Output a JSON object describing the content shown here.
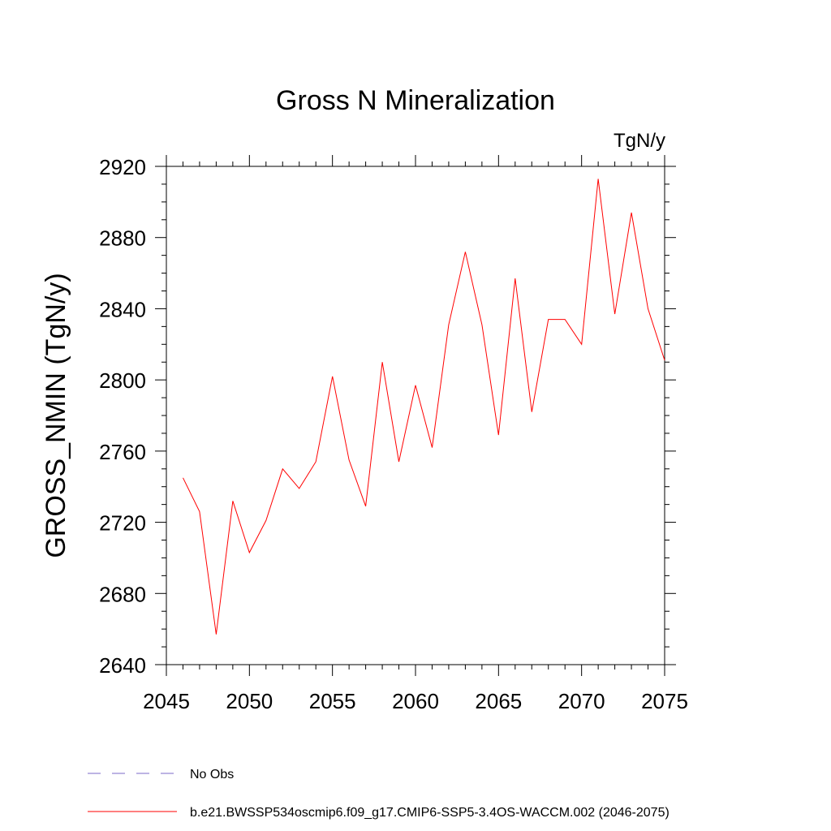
{
  "chart_data": {
    "type": "line",
    "title": "Gross N Mineralization",
    "units": "TgN/y",
    "xlabel": "",
    "ylabel": "GROSS_NMIN  (TgN/y)",
    "xlim": [
      2045,
      2075
    ],
    "ylim": [
      2640,
      2920
    ],
    "x_ticks": [
      2045,
      2050,
      2055,
      2060,
      2065,
      2070,
      2075
    ],
    "y_ticks": [
      2640,
      2680,
      2720,
      2760,
      2800,
      2840,
      2880,
      2920
    ],
    "x_tick_labels": [
      "2045",
      "2050",
      "2055",
      "2060",
      "2065",
      "2070",
      "2075"
    ],
    "y_tick_labels": [
      "2640",
      "2680",
      "2720",
      "2760",
      "2800",
      "2840",
      "2880",
      "2920"
    ],
    "grid": false,
    "legend_position": "bottom-left",
    "series": [
      {
        "name": "b.e21.BWSSP534oscmip6.f09_g17.CMIP6-SSP5-3.4OS-WACCM.002 (2046-2075)",
        "color": "#ff0000",
        "style": "solid",
        "x": [
          2046,
          2047,
          2048,
          2049,
          2050,
          2051,
          2052,
          2053,
          2054,
          2055,
          2056,
          2057,
          2058,
          2059,
          2060,
          2061,
          2062,
          2063,
          2064,
          2065,
          2066,
          2067,
          2068,
          2069,
          2070,
          2071,
          2072,
          2073,
          2074,
          2075
        ],
        "y": [
          2745,
          2726,
          2657,
          2732,
          2703,
          2721,
          2750,
          2739,
          2754,
          2802,
          2755,
          2729,
          2810,
          2754,
          2797,
          2762,
          2831,
          2872,
          2831,
          2769,
          2857,
          2782,
          2834,
          2834,
          2820,
          2913,
          2837,
          2894,
          2840,
          2811
        ]
      }
    ],
    "legend": [
      {
        "label": "No Obs",
        "color": "#7b68c8",
        "style": "dashed"
      },
      {
        "label": "b.e21.BWSSP534oscmip6.f09_g17.CMIP6-SSP5-3.4OS-WACCM.002 (2046-2075)",
        "color": "#ff0000",
        "style": "solid"
      }
    ]
  }
}
